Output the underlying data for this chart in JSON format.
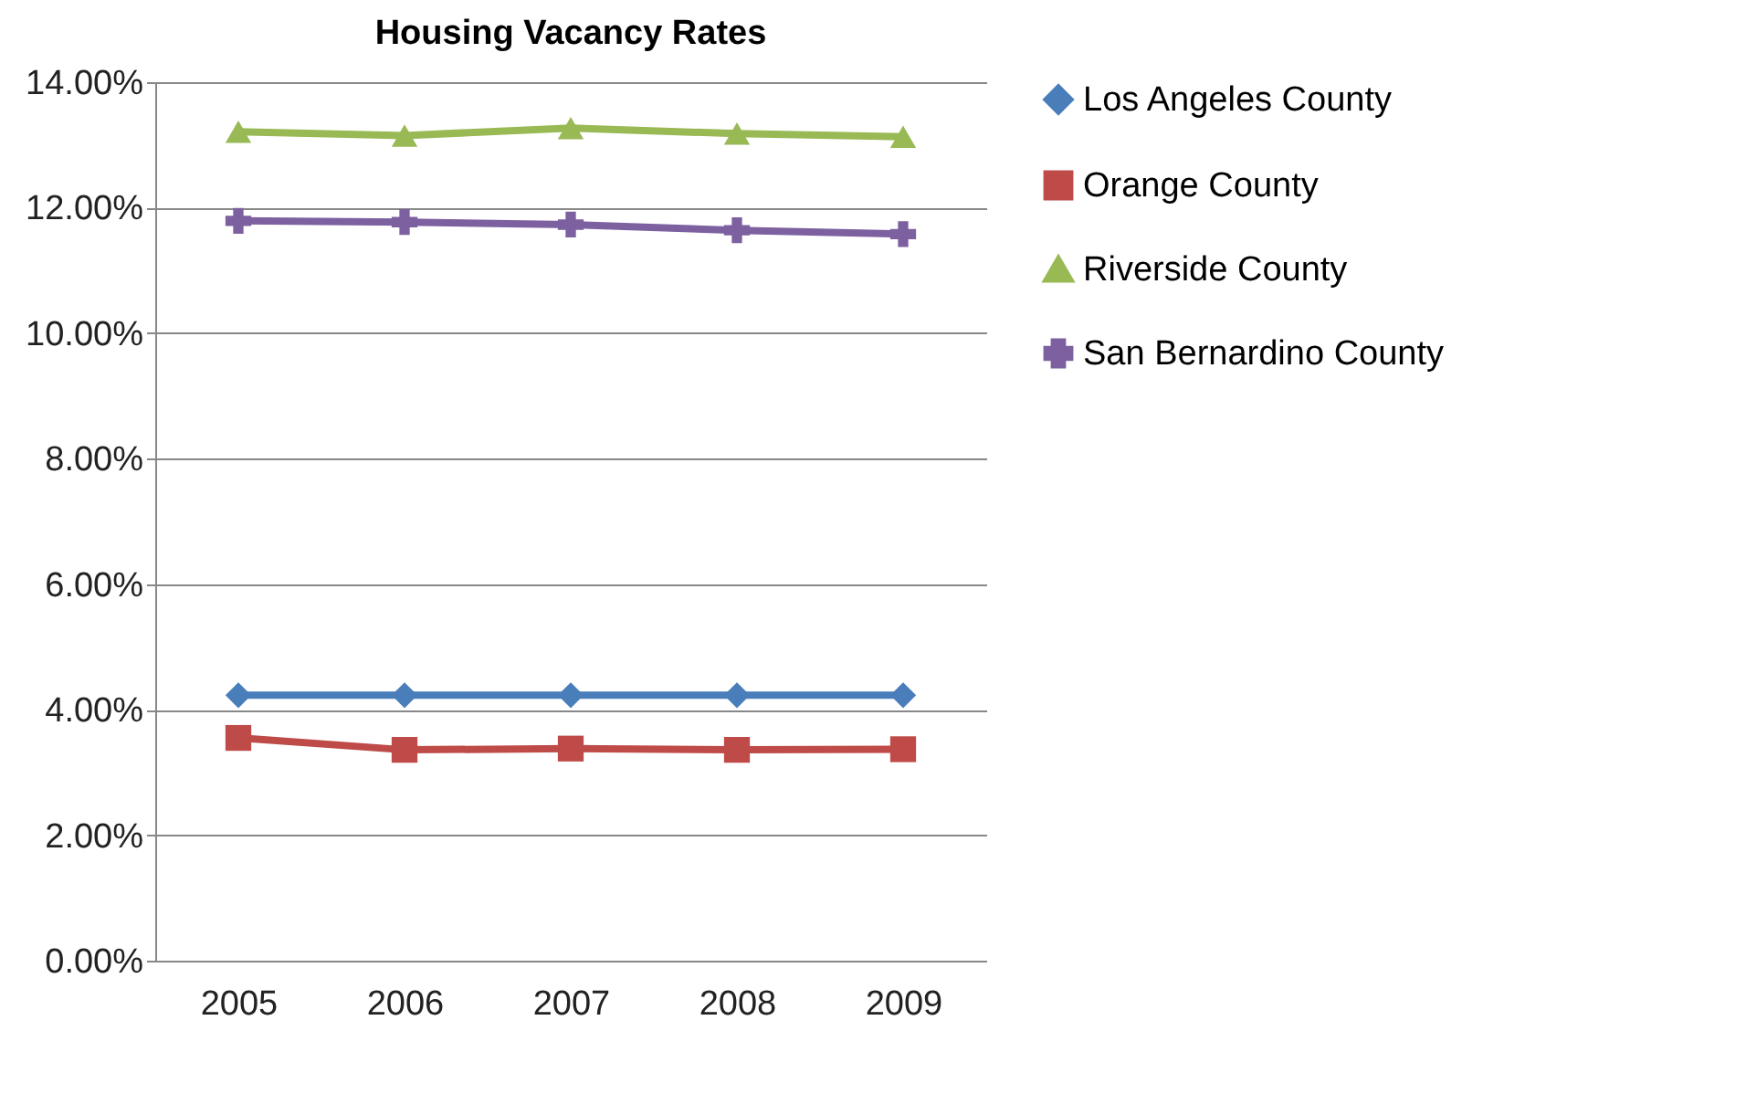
{
  "chart_data": {
    "type": "line",
    "title": "Housing Vacancy Rates",
    "categories": [
      "2005",
      "2006",
      "2007",
      "2008",
      "2009"
    ],
    "series": [
      {
        "name": "Los Angeles County",
        "color": "#4a7ebb",
        "marker": "diamond",
        "values": [
          4.23,
          4.23,
          4.23,
          4.23,
          4.23
        ]
      },
      {
        "name": "Orange County",
        "color": "#be4b48",
        "marker": "square",
        "values": [
          3.55,
          3.36,
          3.38,
          3.36,
          3.37
        ]
      },
      {
        "name": "Riverside County",
        "color": "#98b954",
        "marker": "triangle",
        "values": [
          13.21,
          13.15,
          13.27,
          13.18,
          13.13
        ]
      },
      {
        "name": "San Bernardino County",
        "color": "#7d60a0",
        "marker": "cross",
        "values": [
          11.79,
          11.77,
          11.73,
          11.64,
          11.58
        ]
      }
    ],
    "ylim": [
      0,
      14
    ],
    "yticks": [
      {
        "value": 0,
        "label": "0.00%"
      },
      {
        "value": 2,
        "label": "2.00%"
      },
      {
        "value": 4,
        "label": "4.00%"
      },
      {
        "value": 6,
        "label": "6.00%"
      },
      {
        "value": 8,
        "label": "8.00%"
      },
      {
        "value": 10,
        "label": "10.00%"
      },
      {
        "value": 12,
        "label": "12.00%"
      },
      {
        "value": 14,
        "label": "14.00%"
      }
    ],
    "grid": "y",
    "legend": "right"
  }
}
